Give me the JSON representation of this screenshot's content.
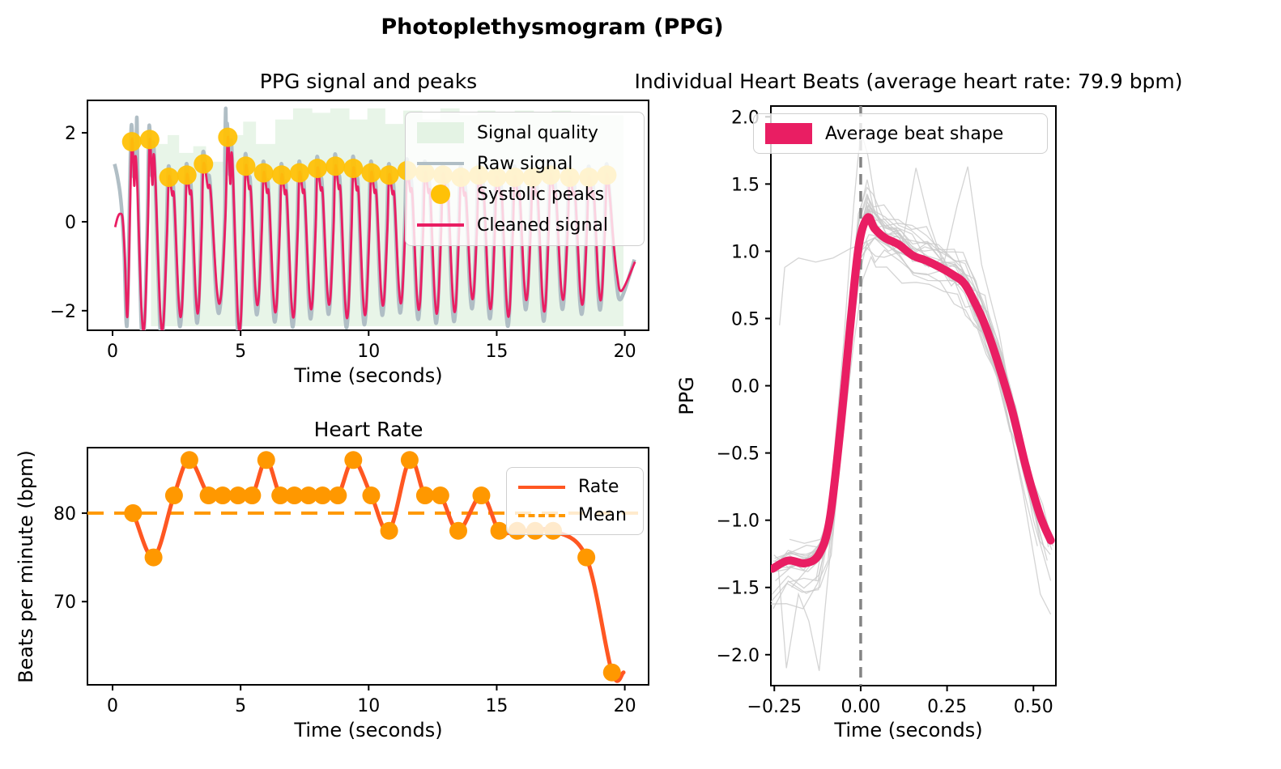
{
  "figure": {
    "suptitle": "Photoplethysmogram (PPG)",
    "background": "#ffffff"
  },
  "colors": {
    "raw": "#B0BEC5",
    "cleaned": "#E91E63",
    "peaks": "#FFC107",
    "quality_fill": "rgba(76,175,80,0.13)",
    "rate": "#FF5722",
    "mean": "#FF9800",
    "beats_individual": "#C9C9C9",
    "beat_average": "#E91E63",
    "zero_vline": "#848484",
    "spine": "#000000"
  },
  "chart_data": [
    {
      "type": "line",
      "name": "ppg_signal",
      "title": "PPG signal and peaks",
      "xlabel": "Time (seconds)",
      "ylabel": "",
      "xlim": [
        -0.98,
        20.93
      ],
      "ylim": [
        -2.44,
        2.73
      ],
      "xticks": {
        "values": [
          0,
          5,
          10,
          15,
          20
        ],
        "labels": [
          "0",
          "5",
          "10",
          "15",
          "20"
        ]
      },
      "yticks": {
        "values": [
          -2,
          0,
          2
        ],
        "labels": [
          "−2",
          "0",
          "2"
        ]
      },
      "grid": false,
      "legend_position": "upper right",
      "legend": [
        {
          "label": "Signal quality",
          "swatch": "patch-green"
        },
        {
          "label": "Raw signal",
          "swatch": "line-gray"
        },
        {
          "label": "Systolic peaks",
          "swatch": "dot-amber"
        },
        {
          "label": "Cleaned signal",
          "swatch": "line-crimson"
        }
      ],
      "systolic_peaks": [
        [
          0.75,
          1.8
        ],
        [
          1.45,
          1.85
        ],
        [
          2.2,
          1.0
        ],
        [
          2.9,
          1.05
        ],
        [
          3.55,
          1.3
        ],
        [
          4.5,
          1.9
        ],
        [
          5.2,
          1.25
        ],
        [
          5.9,
          1.1
        ],
        [
          6.6,
          1.05
        ],
        [
          7.3,
          1.1
        ],
        [
          8.0,
          1.2
        ],
        [
          8.7,
          1.25
        ],
        [
          9.4,
          1.2
        ],
        [
          10.1,
          1.1
        ],
        [
          10.8,
          1.05
        ],
        [
          11.5,
          1.15
        ],
        [
          12.2,
          1.1
        ],
        [
          12.9,
          1.05
        ],
        [
          13.6,
          1.0
        ],
        [
          14.3,
          1.05
        ],
        [
          15.0,
          1.0
        ],
        [
          15.7,
          1.0
        ],
        [
          16.4,
          1.0
        ],
        [
          17.1,
          1.05
        ],
        [
          17.85,
          1.0
        ],
        [
          18.6,
          1.0
        ],
        [
          19.3,
          1.05
        ]
      ],
      "raw_spikes": [
        [
          0.95,
          2.35
        ],
        [
          4.42,
          2.55
        ]
      ],
      "quality_bottom": -2.35,
      "quality_steps": [
        [
          1.5,
          2.15,
          1.75
        ],
        [
          2.15,
          2.6,
          1.95
        ],
        [
          2.6,
          3.15,
          1.55
        ],
        [
          3.15,
          3.65,
          1.7
        ],
        [
          3.65,
          4.4,
          1.35
        ],
        [
          4.4,
          5.1,
          1.95
        ],
        [
          5.1,
          5.6,
          2.25
        ],
        [
          5.6,
          6.35,
          1.75
        ],
        [
          6.35,
          7.05,
          2.3
        ],
        [
          7.05,
          7.8,
          2.55
        ],
        [
          7.8,
          8.5,
          2.45
        ],
        [
          8.5,
          9.25,
          2.55
        ],
        [
          9.25,
          9.95,
          2.3
        ],
        [
          9.95,
          10.65,
          2.55
        ],
        [
          10.65,
          11.35,
          2.2
        ],
        [
          11.35,
          12.1,
          2.5
        ],
        [
          12.1,
          12.8,
          2.3
        ],
        [
          12.8,
          13.55,
          2.55
        ],
        [
          13.55,
          14.25,
          2.4
        ],
        [
          14.25,
          14.95,
          2.5
        ],
        [
          14.95,
          15.7,
          2.45
        ],
        [
          15.7,
          16.45,
          2.5
        ],
        [
          16.45,
          17.15,
          2.45
        ],
        [
          17.15,
          17.9,
          2.5
        ],
        [
          17.9,
          18.65,
          2.45
        ],
        [
          18.65,
          19.95,
          2.4
        ]
      ]
    },
    {
      "type": "line",
      "name": "heart_rate",
      "title": "Heart Rate",
      "xlabel": "Time (seconds)",
      "ylabel": "Beats per minute (bpm)",
      "xlim": [
        -0.98,
        20.93
      ],
      "ylim": [
        60.6,
        87.4
      ],
      "xticks": {
        "values": [
          0,
          5,
          10,
          15,
          20
        ],
        "labels": [
          "0",
          "5",
          "10",
          "15",
          "20"
        ]
      },
      "yticks": {
        "values": [
          70,
          80
        ],
        "labels": [
          "70",
          "80"
        ]
      },
      "grid": false,
      "legend_position": "upper right",
      "legend": [
        {
          "label": "Rate",
          "swatch": "line-deeporange"
        },
        {
          "label": "Mean",
          "swatch": "dash-orange"
        }
      ],
      "mean_bpm": 80,
      "rate_points": [
        [
          0.8,
          80
        ],
        [
          1.6,
          75
        ],
        [
          2.4,
          82
        ],
        [
          3.0,
          86
        ],
        [
          3.75,
          82
        ],
        [
          4.3,
          82
        ],
        [
          4.9,
          82
        ],
        [
          5.45,
          82
        ],
        [
          6.0,
          86
        ],
        [
          6.55,
          82
        ],
        [
          7.1,
          82
        ],
        [
          7.65,
          82
        ],
        [
          8.2,
          82
        ],
        [
          8.8,
          82
        ],
        [
          9.4,
          86
        ],
        [
          10.1,
          82
        ],
        [
          10.8,
          78
        ],
        [
          11.6,
          86
        ],
        [
          12.2,
          82
        ],
        [
          12.8,
          82
        ],
        [
          13.5,
          78
        ],
        [
          14.4,
          82
        ],
        [
          15.1,
          78
        ],
        [
          15.8,
          78
        ],
        [
          16.5,
          78
        ],
        [
          17.2,
          78
        ],
        [
          18.5,
          75
        ],
        [
          19.5,
          62
        ]
      ],
      "tail_point": [
        19.95,
        62
      ]
    },
    {
      "type": "line",
      "name": "heartbeats",
      "title": "Individual Heart Beats (average heart rate: 79.9 bpm)",
      "xlabel": "Time (seconds)",
      "ylabel": "PPG",
      "xlim": [
        -0.26,
        0.565
      ],
      "ylim": [
        -2.23,
        2.08
      ],
      "xticks": {
        "values": [
          -0.25,
          0.0,
          0.25,
          0.5
        ],
        "labels": [
          "−0.25",
          "0.00",
          "0.25",
          "0.50"
        ]
      },
      "yticks": {
        "values": [
          2.0,
          1.5,
          1.0,
          0.5,
          0.0,
          -0.5,
          -1.0,
          -1.5,
          -2.0
        ],
        "labels": [
          "2.0",
          "1.5",
          "1.0",
          "0.5",
          "0.0",
          "−0.5",
          "−1.0",
          "−1.5",
          "−2.0"
        ]
      },
      "grid": false,
      "vline_x": 0,
      "legend_position": "upper left",
      "legend": [
        {
          "label": "Average beat shape",
          "swatch": "patch-crimson"
        }
      ],
      "average_beat": [
        [
          -0.255,
          -1.36
        ],
        [
          -0.21,
          -1.3
        ],
        [
          -0.16,
          -1.32
        ],
        [
          -0.12,
          -1.25
        ],
        [
          -0.09,
          -1.0
        ],
        [
          -0.06,
          -0.35
        ],
        [
          -0.03,
          0.45
        ],
        [
          -0.005,
          1.05
        ],
        [
          0.02,
          1.25
        ],
        [
          0.04,
          1.17
        ],
        [
          0.07,
          1.1
        ],
        [
          0.11,
          1.05
        ],
        [
          0.15,
          0.97
        ],
        [
          0.19,
          0.93
        ],
        [
          0.23,
          0.88
        ],
        [
          0.27,
          0.82
        ],
        [
          0.3,
          0.76
        ],
        [
          0.33,
          0.62
        ],
        [
          0.36,
          0.45
        ],
        [
          0.4,
          0.15
        ],
        [
          0.44,
          -0.2
        ],
        [
          0.48,
          -0.62
        ],
        [
          0.52,
          -0.97
        ],
        [
          0.55,
          -1.15
        ]
      ],
      "outlier_beats": [
        [
          [
            -0.13,
            -1.45
          ],
          [
            -0.09,
            -0.9
          ],
          [
            -0.05,
            0.3
          ],
          [
            -0.02,
            1.35
          ],
          [
            0.0,
            1.9
          ],
          [
            0.02,
            1.72
          ],
          [
            0.05,
            1.25
          ],
          [
            0.09,
            1.05
          ],
          [
            0.14,
            0.98
          ],
          [
            0.2,
            0.9
          ],
          [
            0.28,
            0.8
          ],
          [
            0.35,
            0.55
          ],
          [
            0.42,
            -0.1
          ],
          [
            0.48,
            -0.75
          ],
          [
            0.53,
            -1.2
          ]
        ],
        [
          [
            -0.235,
            0.45
          ],
          [
            -0.22,
            0.88
          ],
          [
            -0.18,
            0.95
          ],
          [
            -0.13,
            0.92
          ],
          [
            -0.08,
            0.95
          ],
          [
            -0.03,
            1.02
          ],
          [
            0.0,
            1.05
          ],
          [
            0.04,
            1.1
          ],
          [
            0.09,
            1.02
          ],
          [
            0.15,
            0.95
          ],
          [
            0.22,
            0.88
          ],
          [
            0.3,
            0.78
          ],
          [
            0.38,
            0.35
          ],
          [
            0.45,
            -0.4
          ],
          [
            0.5,
            -0.9
          ],
          [
            0.54,
            -1.3
          ]
        ],
        [
          [
            -0.2,
            -1.5
          ],
          [
            -0.15,
            -1.35
          ],
          [
            -0.1,
            -1.1
          ],
          [
            -0.05,
            -0.2
          ],
          [
            0.0,
            0.95
          ],
          [
            0.04,
            1.1
          ],
          [
            0.08,
            1.0
          ],
          [
            0.12,
            1.05
          ],
          [
            0.16,
            1.62
          ],
          [
            0.2,
            1.2
          ],
          [
            0.24,
            0.9
          ],
          [
            0.28,
            1.35
          ],
          [
            0.31,
            1.63
          ],
          [
            0.35,
            0.9
          ],
          [
            0.4,
            0.4
          ],
          [
            0.45,
            -0.3
          ],
          [
            0.5,
            -1.0
          ],
          [
            0.55,
            -1.45
          ]
        ],
        [
          [
            -0.24,
            -1.3
          ],
          [
            -0.215,
            -2.1
          ],
          [
            -0.18,
            -1.55
          ],
          [
            -0.15,
            -1.75
          ],
          [
            -0.12,
            -2.12
          ],
          [
            -0.09,
            -1.3
          ],
          [
            -0.06,
            -0.4
          ],
          [
            -0.03,
            0.5
          ],
          [
            0.0,
            1.0
          ],
          [
            0.05,
            1.12
          ],
          [
            0.1,
            1.0
          ],
          [
            0.2,
            0.9
          ],
          [
            0.3,
            0.75
          ],
          [
            0.4,
            0.1
          ],
          [
            0.47,
            -0.8
          ],
          [
            0.52,
            -1.55
          ],
          [
            0.55,
            -1.7
          ]
        ]
      ]
    }
  ]
}
